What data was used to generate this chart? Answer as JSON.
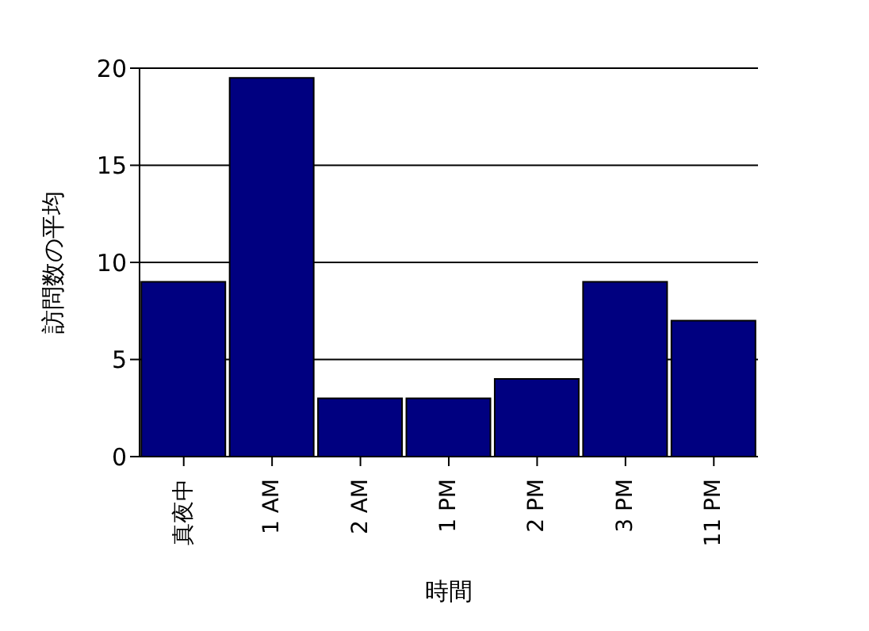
{
  "chart_data": {
    "type": "bar",
    "xlabel": "時間",
    "ylabel": "訪問数の平均",
    "categories": [
      "真夜中",
      "1 AM",
      "2 AM",
      "1 PM",
      "2 PM",
      "3 PM",
      "11 PM"
    ],
    "values": [
      9,
      19.5,
      3,
      3,
      4,
      9,
      7
    ],
    "color": "#000080",
    "ylim": [
      0,
      20
    ],
    "yticks": [
      0,
      5,
      10,
      15,
      20
    ],
    "grid": "y",
    "legend": false
  }
}
